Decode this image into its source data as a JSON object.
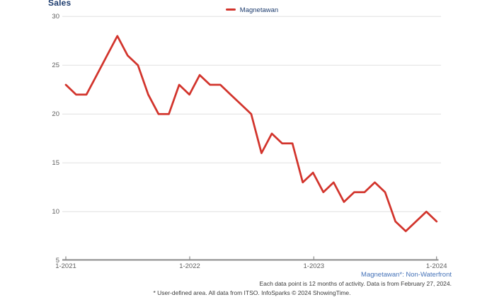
{
  "title": "Sales",
  "legend": {
    "items": [
      {
        "label": "Magnetawan",
        "color": "#d2342c"
      }
    ]
  },
  "footer": {
    "series_note": "Magnetawan*: Non-Waterfront",
    "data_note": "Each data point is 12 months of activity. Data is from February 27, 2024.",
    "attribution": "* User-defined area. All data from ITSO. InfoSparks © 2024 ShowingTime."
  },
  "colors": {
    "line": "#d2342c",
    "title_navy": "#1d3c6e",
    "footer_blue": "#4472b8",
    "axis_text": "#606060",
    "gridline": "#e0e0e0",
    "axis_line": "#8a8a8a"
  },
  "chart_data": {
    "type": "line",
    "title": "Sales",
    "xlabel": "",
    "ylabel": "Sales",
    "ylim": [
      5,
      30
    ],
    "grid": true,
    "legend_position": "top-center",
    "y_ticks": [
      30,
      25,
      20,
      15,
      10,
      5
    ],
    "x_tick_labels": [
      "1-2021",
      "1-2022",
      "1-2023",
      "1-2024"
    ],
    "x": [
      "2021-01",
      "2021-02",
      "2021-03",
      "2021-04",
      "2021-05",
      "2021-06",
      "2021-07",
      "2021-08",
      "2021-09",
      "2021-10",
      "2021-11",
      "2021-12",
      "2022-01",
      "2022-02",
      "2022-03",
      "2022-04",
      "2022-05",
      "2022-06",
      "2022-07",
      "2022-08",
      "2022-09",
      "2022-10",
      "2022-11",
      "2022-12",
      "2023-01",
      "2023-02",
      "2023-03",
      "2023-04",
      "2023-05",
      "2023-06",
      "2023-07",
      "2023-08",
      "2023-09",
      "2023-10",
      "2023-11",
      "2023-12",
      "2024-01"
    ],
    "series": [
      {
        "name": "Magnetawan",
        "color": "#d2342c",
        "values": [
          23,
          22,
          22,
          24,
          26,
          28,
          26,
          25,
          22,
          20,
          20,
          23,
          22,
          24,
          23,
          23,
          22,
          21,
          20,
          16,
          18,
          17,
          17,
          13,
          14,
          12,
          13,
          11,
          12,
          12,
          13,
          12,
          9,
          8,
          9,
          10,
          9
        ]
      }
    ]
  }
}
